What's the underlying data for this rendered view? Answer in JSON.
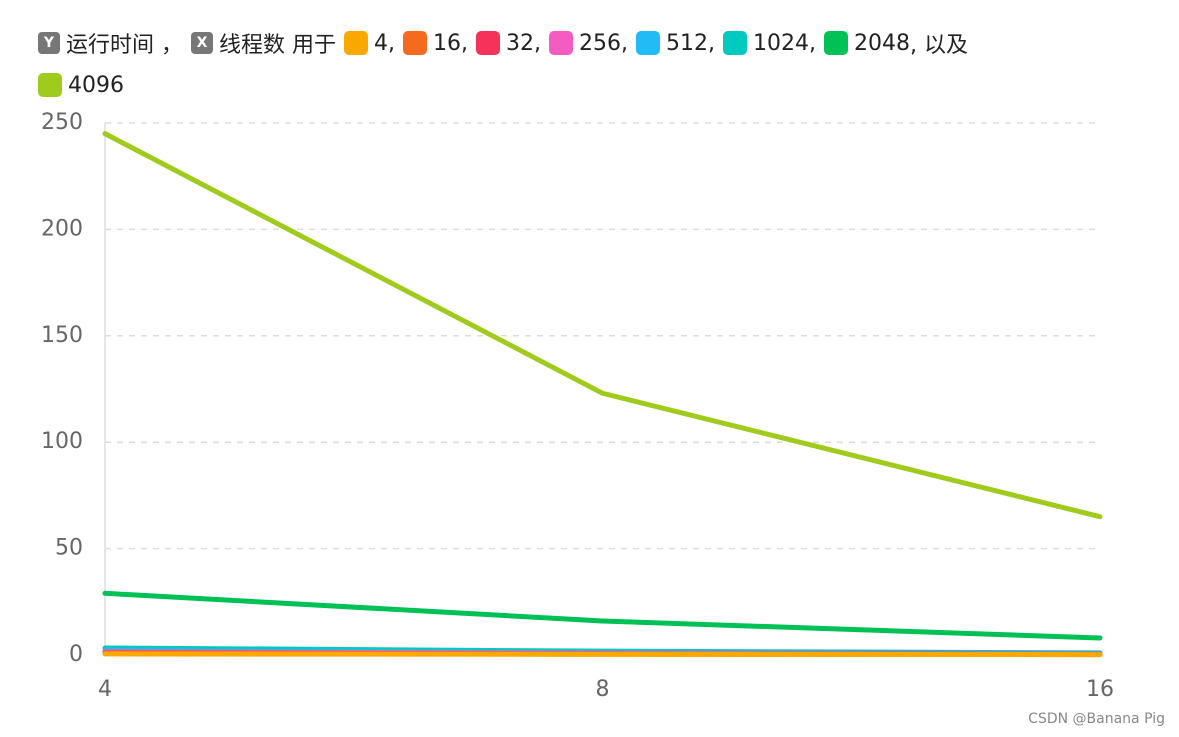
{
  "chart_data": {
    "type": "line",
    "legend": {
      "y_badge": "Y",
      "y_text": "运行时间 ，",
      "x_badge": "X",
      "x_text": "线程数 用于",
      "separator": ",",
      "last_joiner": ", 以及"
    },
    "categories": [
      "4",
      "8",
      "16"
    ],
    "series": [
      {
        "name": "4",
        "color": "#f9a800",
        "values": [
          0.5,
          0.3,
          0.2
        ]
      },
      {
        "name": "16",
        "color": "#f46b20",
        "values": [
          0.8,
          0.4,
          0.2
        ]
      },
      {
        "name": "32",
        "color": "#f5335a",
        "values": [
          1,
          0.5,
          0.3
        ]
      },
      {
        "name": "256",
        "color": "#f55cc2",
        "values": [
          1.5,
          0.8,
          0.4
        ]
      },
      {
        "name": "512",
        "color": "#22bbf5",
        "values": [
          2,
          1,
          0.6
        ]
      },
      {
        "name": "1024",
        "color": "#00c9c0",
        "values": [
          3.3,
          1.8,
          1
        ]
      },
      {
        "name": "2048",
        "color": "#00c155",
        "values": [
          29,
          16,
          8
        ]
      },
      {
        "name": "4096",
        "color": "#9fcb1c",
        "values": [
          245,
          123,
          65
        ]
      }
    ],
    "ylim": [
      0,
      250
    ],
    "yticks": [
      0,
      50,
      100,
      150,
      200,
      250
    ],
    "grid": true,
    "watermark": "CSDN @Banana Pig"
  }
}
